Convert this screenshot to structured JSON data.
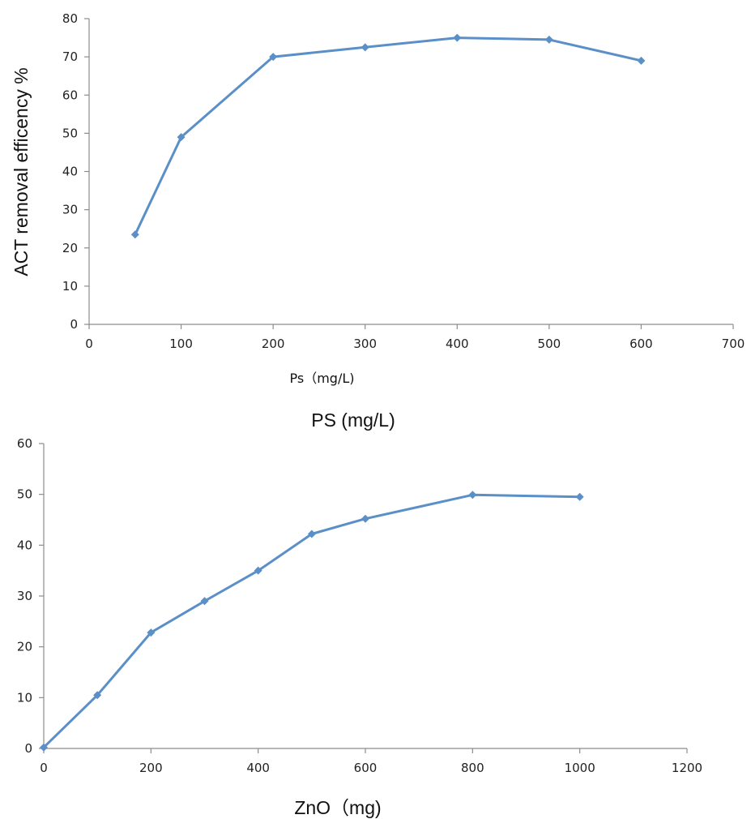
{
  "colors": {
    "series": "#5b8fc7"
  },
  "chart_data": [
    {
      "type": "line",
      "title": "",
      "xlabel": "Ps（mg/L)",
      "ylabel": "ACT removal efficency %",
      "xlim": [
        0,
        700
      ],
      "ylim": [
        0,
        80
      ],
      "xticks": [
        0,
        100,
        200,
        300,
        400,
        500,
        600,
        700
      ],
      "yticks": [
        0,
        10,
        20,
        30,
        40,
        50,
        60,
        70,
        80
      ],
      "grid": false,
      "legend": "none",
      "series": [
        {
          "x": [
            50,
            100,
            200,
            300,
            400,
            500,
            600
          ],
          "y": [
            23.5,
            49,
            70,
            72.5,
            75,
            74.5,
            69
          ]
        }
      ]
    },
    {
      "type": "line",
      "title": "",
      "xlabel": "ZnO（mg)",
      "ylabel": "",
      "xlim": [
        0,
        1200
      ],
      "ylim": [
        0,
        60
      ],
      "xticks": [
        0,
        200,
        400,
        600,
        800,
        1000,
        1200
      ],
      "yticks": [
        0,
        10,
        20,
        30,
        40,
        50,
        60
      ],
      "grid": false,
      "legend": "none",
      "series": [
        {
          "x": [
            0,
            100,
            200,
            300,
            400,
            500,
            600,
            800,
            1000
          ],
          "y": [
            0.2,
            10.5,
            22.8,
            29,
            35,
            42.2,
            45.2,
            49.9,
            49.5
          ]
        }
      ]
    }
  ],
  "caption": "PS (mg/L)"
}
